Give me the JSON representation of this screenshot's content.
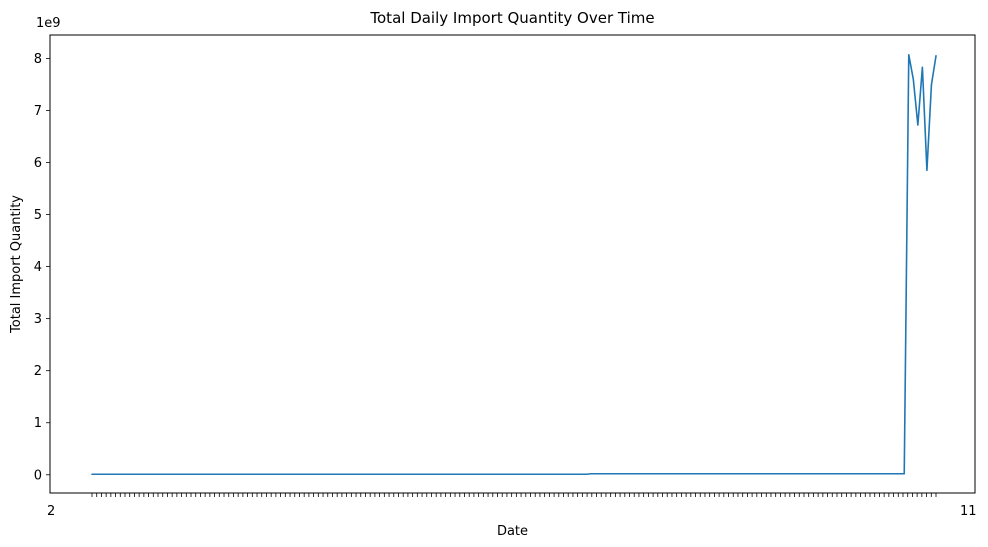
{
  "chart_data": {
    "type": "line",
    "title": "Total Daily Import Quantity Over Time",
    "xlabel": "Date",
    "ylabel": "Total Import Quantity",
    "y_offset_label": "1e9",
    "y_multiplier": 1000000000,
    "ylim": [
      -0.35,
      8.45
    ],
    "y_ticks": [
      0,
      1,
      2,
      3,
      4,
      5,
      6,
      7,
      8
    ],
    "grid": false,
    "legend": "none",
    "x_tick_count": 180,
    "x_tick_labels_note": "overlapping date labels rendered illegibly",
    "x_visible_label_start": "2",
    "x_visible_label_end": "11",
    "line_color": "#1f77b4",
    "series": [
      {
        "values": [
          0.01,
          0.01,
          0.01,
          0.01,
          0.01,
          0.01,
          0.01,
          0.01,
          0.01,
          0.01,
          0.01,
          0.01,
          0.01,
          0.01,
          0.01,
          0.01,
          0.01,
          0.01,
          0.01,
          0.01,
          0.01,
          0.01,
          0.01,
          0.01,
          0.01,
          0.01,
          0.01,
          0.01,
          0.01,
          0.01,
          0.01,
          0.01,
          0.01,
          0.01,
          0.01,
          0.01,
          0.01,
          0.01,
          0.01,
          0.01,
          0.01,
          0.01,
          0.01,
          0.01,
          0.01,
          0.01,
          0.01,
          0.01,
          0.01,
          0.01,
          0.01,
          0.01,
          0.01,
          0.01,
          0.01,
          0.01,
          0.01,
          0.01,
          0.01,
          0.01,
          0.01,
          0.01,
          0.01,
          0.01,
          0.01,
          0.01,
          0.01,
          0.01,
          0.01,
          0.01,
          0.01,
          0.01,
          0.01,
          0.01,
          0.01,
          0.01,
          0.01,
          0.01,
          0.01,
          0.01,
          0.01,
          0.01,
          0.01,
          0.01,
          0.01,
          0.01,
          0.01,
          0.01,
          0.01,
          0.01,
          0.01,
          0.01,
          0.01,
          0.01,
          0.01,
          0.01,
          0.01,
          0.01,
          0.01,
          0.01,
          0.01,
          0.01,
          0.01,
          0.01,
          0.01,
          0.01,
          0.01,
          0.01,
          0.01,
          0.01,
          0.02,
          0.02,
          0.02,
          0.02,
          0.02,
          0.02,
          0.02,
          0.02,
          0.02,
          0.02,
          0.02,
          0.02,
          0.02,
          0.02,
          0.02,
          0.02,
          0.02,
          0.02,
          0.02,
          0.02,
          0.02,
          0.02,
          0.02,
          0.02,
          0.02,
          0.02,
          0.02,
          0.02,
          0.02,
          0.02,
          0.02,
          0.02,
          0.02,
          0.02,
          0.02,
          0.02,
          0.02,
          0.02,
          0.02,
          0.02,
          0.02,
          0.02,
          0.02,
          0.02,
          0.02,
          0.02,
          0.02,
          0.02,
          0.02,
          0.02,
          0.02,
          0.02,
          0.02,
          0.02,
          0.02,
          0.02,
          0.02,
          0.02,
          0.02,
          0.02,
          0.02,
          0.02,
          0.02,
          0.02,
          0.02,
          0.02,
          0.02,
          0.02,
          0.02,
          0.02,
          8.07,
          7.6,
          6.72,
          7.83,
          5.85,
          7.5,
          8.05
        ]
      }
    ]
  }
}
